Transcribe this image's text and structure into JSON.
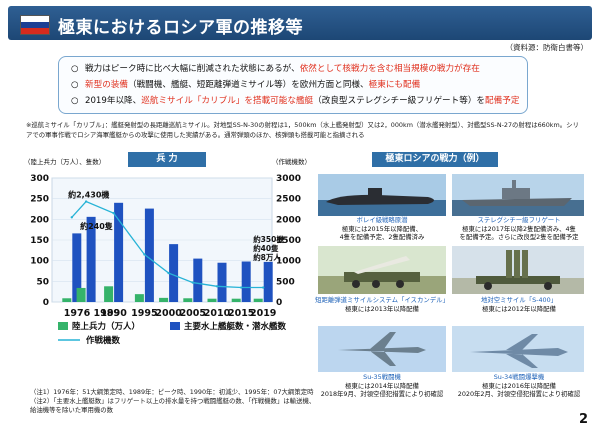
{
  "header": {
    "title": "極東におけるロシア軍の推移等",
    "source": "（資料源：防衛白書等）",
    "flag_colors": [
      "#ffffff",
      "#1c3f94",
      "#d52b1e"
    ]
  },
  "bullets": [
    {
      "mark": "○",
      "segments": [
        {
          "text": "戦力はピーク時に比べ大幅に削減された状態にあるが、",
          "highlight": false
        },
        {
          "text": "依然として核戦力を含む相当規模の戦力が存在",
          "highlight": true
        }
      ]
    },
    {
      "mark": "○",
      "segments": [
        {
          "text": "新型の装備",
          "highlight": true
        },
        {
          "text": "（戦闘機、艦艇、短距離弾道ミサイル等）を欧州方面と同様、",
          "highlight": false
        },
        {
          "text": "極東にも配備",
          "highlight": true
        }
      ]
    },
    {
      "mark": "○",
      "segments": [
        {
          "text": "2019年以降、",
          "highlight": false
        },
        {
          "text": "巡航ミサイル「カリブル」を搭載可能な艦艇",
          "highlight": true
        },
        {
          "text": "（改良型ステレグシチー級フリゲート等）を",
          "highlight": false
        },
        {
          "text": "配備予定",
          "highlight": true
        }
      ]
    }
  ],
  "footnote": "※巡航ミサイル「カリブル」：艦艇発射型の長距離巡航ミサイル。対地型SS-N-30の射程は1，500km（水上艦発射型）又は2，000km（潜水艦発射型）、対艦型SS-N-27の射程は660km。シリアでの軍事作戦でロシア海軍艦艇からの攻撃に使用した実績がある。通常弾頭のほか、核弾頭も搭載可能と指摘される",
  "chart_panel": {
    "tag": "兵 力"
  },
  "chart_data": {
    "type": "bar",
    "categories": [
      "1976",
      "1989",
      "1990",
      "1995",
      "2000",
      "2005",
      "2010",
      "2015",
      "2019"
    ],
    "tick_labels": [
      "1976",
      "1989",
      "1990",
      "1995",
      "2000",
      "2005",
      "2010",
      "2015",
      "2019"
    ],
    "tick_overlap_label": "1976 1989",
    "series": [
      {
        "name": "陸上兵力（万人）",
        "axis": "left",
        "values": [
          9,
          34,
          38,
          19,
          10,
          9,
          8,
          8,
          8
        ],
        "color": "#35b36a"
      },
      {
        "name": "主要水上艦艇数・潜水艦数",
        "axis": "left",
        "values": [
          166,
          206,
          240,
          226,
          140,
          105,
          95,
          98,
          97
        ],
        "color": "#1f52c0"
      },
      {
        "name": "作戦機数",
        "axis": "right",
        "type": "line",
        "values": [
          2050,
          2430,
          2150,
          1150,
          700,
          470,
          380,
          350,
          350
        ],
        "color": "#27b3d6"
      }
    ],
    "y_left": {
      "label": "（陸上兵力（万人）、隻数）",
      "ticks": [
        0,
        50,
        100,
        150,
        200,
        250,
        300
      ],
      "ylim": [
        0,
        300
      ]
    },
    "y_right": {
      "label": "（作戦機数）",
      "ticks": [
        0,
        500,
        1000,
        1500,
        2000,
        2500,
        3000
      ],
      "ylim": [
        0,
        3000
      ]
    },
    "annotations": [
      "約2,430機",
      "約240隻",
      "約350機",
      "約40隻",
      "約8万人"
    ],
    "legend": [
      {
        "label": "陸上兵力（万人）",
        "kind": "bar",
        "color": "#35b36a"
      },
      {
        "label": "主要水上艦艇数・潜水艦数",
        "kind": "bar",
        "color": "#1f52c0"
      },
      {
        "label": "作戦機数",
        "kind": "line",
        "color": "#27b3d6"
      }
    ]
  },
  "notes": [
    "（注1）1976年：51大綱策定時、1989年：ピーク時、1990年：初減少、1995年：07大綱策定時",
    "（注2）「主要水上艦艇数」はフリゲート以上の排水量を持つ戦闘艦艇の数、「作戦機数」は輸送機、給油機等を除いた軍用機の数"
  ],
  "examples_panel": {
    "tag": "極東ロシアの戦力（例）",
    "items": [
      {
        "name": "ボレイ級戦略原潜",
        "desc1": "極東には2015年以降配備、",
        "desc2": "4隻を配備予定、2隻配備済み",
        "icon": "submarine-icon"
      },
      {
        "name": "ステレグシチー級フリゲート",
        "desc1": "極東には2017年以降2隻配備済み、4隻",
        "desc2": "を配備予定。さらに改良型2隻を配備予定",
        "icon": "frigate-icon"
      },
      {
        "name": "短距離弾道ミサイルシステム「イスカンデル」",
        "desc1": "極東には2013年以降配備",
        "desc2": "",
        "icon": "missile-launcher-icon"
      },
      {
        "name": "地対空ミサイル「S-400」",
        "desc1": "極東には2012年以降配備",
        "desc2": "",
        "icon": "sam-launcher-icon"
      },
      {
        "name": "Su-35戦闘機",
        "desc1": "極東には2014年以降配備",
        "desc2": "2018年9月、対領空侵犯措置により初確認",
        "icon": "fighter-jet-icon"
      },
      {
        "name": "Su-34戦闘爆撃機",
        "desc1": "極東には2016年以降配備",
        "desc2": "2020年2月、対領空侵犯措置により初確認",
        "icon": "bomber-jet-icon"
      }
    ]
  },
  "page_number": "2"
}
